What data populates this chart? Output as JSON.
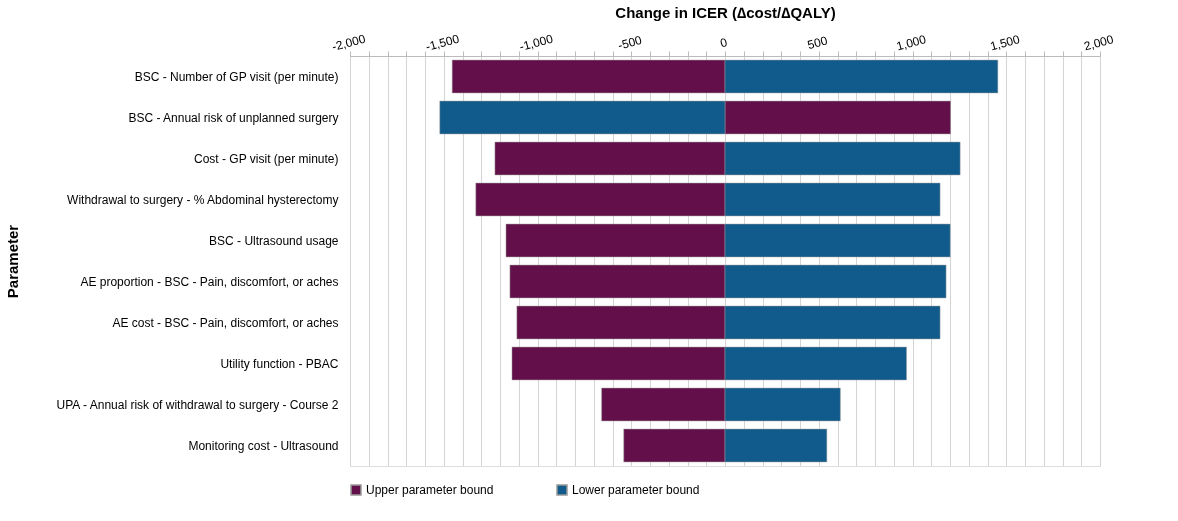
{
  "chart_data": {
    "type": "bar",
    "orientation": "horizontal",
    "xlabel": "Change in ICER (∆cost/∆QALY)",
    "ylabel": "Parameter",
    "categories": [
      "BSC - Number of GP visit (per minute)",
      "BSC - Annual risk of unplanned surgery",
      "Cost - GP visit (per minute)",
      "Withdrawal to surgery - % Abdominal hysterectomy",
      "BSC - Ultrasound usage",
      "AE proportion - BSC - Pain, discomfort, or aches",
      "AE cost - BSC - Pain, discomfort, or aches",
      "Utility function - PBAC",
      "UPA - Annual risk of withdrawal to surgery - Course 2",
      "Monitoring cost - Ultrasound"
    ],
    "series": [
      {
        "name": "Upper parameter bound",
        "color": "#63104a",
        "values": [
          -1455,
          1203,
          -1227,
          -1329,
          -1168,
          -1147,
          -1110,
          -1136,
          -658,
          -540
        ]
      },
      {
        "name": "Lower parameter bound",
        "color": "#115b8c",
        "values": [
          1455,
          -1521,
          1254,
          1147,
          1201,
          1179,
          1147,
          968,
          615,
          543
        ]
      }
    ],
    "xlim": [
      -2000,
      2000
    ],
    "xticks": [
      {
        "value": -2000,
        "label": "-2,000"
      },
      {
        "value": -1900,
        "label": null
      },
      {
        "value": -1800,
        "label": null
      },
      {
        "value": -1700,
        "label": null
      },
      {
        "value": -1600,
        "label": null
      },
      {
        "value": -1500,
        "label": "-1,500"
      },
      {
        "value": -1400,
        "label": null
      },
      {
        "value": -1300,
        "label": null
      },
      {
        "value": -1200,
        "label": null
      },
      {
        "value": -1100,
        "label": null
      },
      {
        "value": -1000,
        "label": "-1,000"
      },
      {
        "value": -900,
        "label": null
      },
      {
        "value": -800,
        "label": null
      },
      {
        "value": -700,
        "label": null
      },
      {
        "value": -600,
        "label": null
      },
      {
        "value": -500,
        "label": "-500"
      },
      {
        "value": -400,
        "label": null
      },
      {
        "value": -300,
        "label": null
      },
      {
        "value": -200,
        "label": null
      },
      {
        "value": -100,
        "label": null
      },
      0,
      {
        "value": 100,
        "label": null
      },
      {
        "value": 200,
        "label": null
      },
      {
        "value": 300,
        "label": null
      },
      {
        "value": 400,
        "label": null
      },
      500,
      {
        "value": 600,
        "label": null
      },
      {
        "value": 700,
        "label": null
      },
      {
        "value": 800,
        "label": null
      },
      {
        "value": 900,
        "label": null
      },
      {
        "value": 1000,
        "label": "1,000"
      },
      {
        "value": 1100,
        "label": null
      },
      {
        "value": 1200,
        "label": null
      },
      {
        "value": 1300,
        "label": null
      },
      {
        "value": 1400,
        "label": null
      },
      {
        "value": 1500,
        "label": "1,500"
      },
      {
        "value": 1600,
        "label": null
      },
      {
        "value": 1700,
        "label": null
      },
      {
        "value": 1800,
        "label": null
      },
      {
        "value": 1900,
        "label": null
      },
      {
        "value": 2000,
        "label": "2,000"
      }
    ],
    "grid": true,
    "legend": "bottom",
    "stacked": true
  }
}
